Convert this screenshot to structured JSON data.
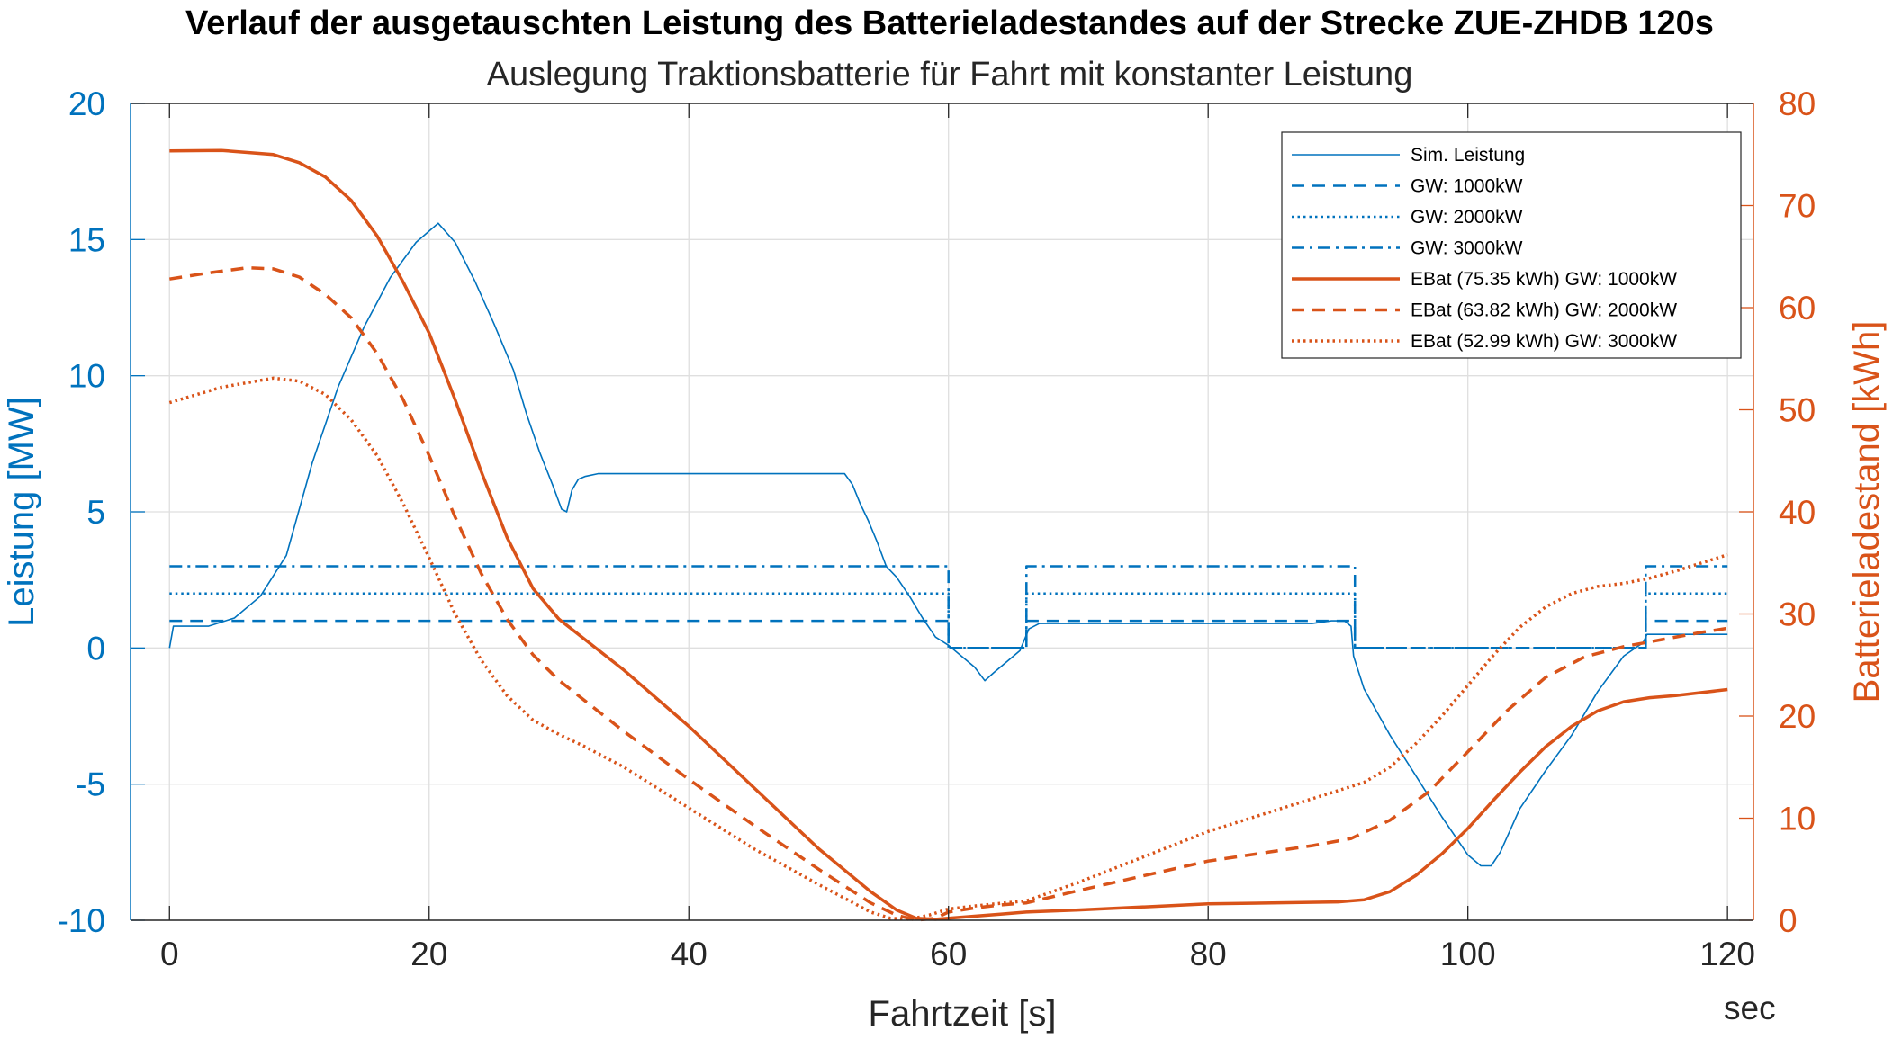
{
  "chart_data": {
    "type": "line",
    "title": "Verlauf der ausgetauschten Leistung des Batterieladestandes auf der Strecke ZUE-ZHDB 120s",
    "subtitle": "Auslegung Traktionsbatterie für Fahrt mit konstanter Leistung",
    "xlabel": "Fahrtzeit [s]",
    "xunit_label": "sec",
    "ylabel_left": "Leistung [MW]",
    "ylabel_right": "Batterieladestand [kWh]",
    "xlim": [
      -3,
      122
    ],
    "ylim_left": [
      -10,
      20
    ],
    "ylim_right": [
      0,
      80
    ],
    "xticks": [
      "0",
      "20",
      "40",
      "60",
      "80",
      "100",
      "120"
    ],
    "yticks_left": [
      "-10",
      "-5",
      "0",
      "5",
      "10",
      "15",
      "20"
    ],
    "yticks_right": [
      "0",
      "10",
      "20",
      "30",
      "40",
      "50",
      "60",
      "70",
      "80"
    ],
    "grid": true,
    "legend_position": "top-right",
    "colors": {
      "left_axis": "#0072BD",
      "right_axis": "#D95319",
      "grid": "#dfdfdf"
    },
    "series": [
      {
        "name": "Sim. Leistung",
        "axis": "left",
        "color": "#0072BD",
        "style": "solid",
        "width": 1.6,
        "x": [
          0,
          0.3,
          3,
          5,
          7,
          9,
          11,
          13,
          15,
          17,
          19,
          20.7,
          22,
          23.5,
          25,
          26.5,
          27.5,
          28.5,
          29.5,
          30.2,
          30.6,
          31,
          31.5,
          32,
          33,
          52,
          52.6,
          53.2,
          53.8,
          54.5,
          55.2,
          56,
          57,
          58,
          59,
          60,
          61,
          62,
          62.8,
          63.5,
          64.5,
          65.5,
          66.2,
          67,
          68,
          88,
          89.5,
          90.5,
          91,
          91.2,
          92,
          94,
          96,
          98,
          100,
          101,
          101.8,
          102.5,
          104,
          106,
          108,
          110,
          112,
          113.5,
          113.8,
          120
        ],
        "y": [
          0,
          0.8,
          0.8,
          1.1,
          1.9,
          3.4,
          6.8,
          9.6,
          11.8,
          13.6,
          14.9,
          15.6,
          14.9,
          13.5,
          11.9,
          10.2,
          8.6,
          7.2,
          6.0,
          5.1,
          5.0,
          5.8,
          6.2,
          6.3,
          6.4,
          6.4,
          6.0,
          5.3,
          4.7,
          3.9,
          3.0,
          2.6,
          1.9,
          1.1,
          0.4,
          0.1,
          -0.3,
          -0.7,
          -1.2,
          -0.9,
          -0.5,
          -0.1,
          0.7,
          0.9,
          0.9,
          0.9,
          1.0,
          1.0,
          0.8,
          -0.3,
          -1.5,
          -3.2,
          -4.7,
          -6.2,
          -7.6,
          -8.0,
          -8.0,
          -7.5,
          -5.9,
          -4.5,
          -3.2,
          -1.6,
          -0.3,
          0.2,
          0.5,
          0.5
        ]
      },
      {
        "name": "GW: 1000kW",
        "axis": "left",
        "color": "#0072BD",
        "style": "dashed",
        "width": 2.5,
        "x": [
          0,
          60,
          60,
          66,
          66,
          91.3,
          91.3,
          113.7,
          113.7,
          120
        ],
        "y": [
          1,
          1,
          0,
          0,
          1,
          1,
          0,
          0,
          1,
          1
        ]
      },
      {
        "name": "GW: 2000kW",
        "axis": "left",
        "color": "#0072BD",
        "style": "dotted",
        "width": 2.5,
        "x": [
          0,
          60,
          60,
          66,
          66,
          91.3,
          91.3,
          113.7,
          113.7,
          120
        ],
        "y": [
          2,
          2,
          0,
          0,
          2,
          2,
          0,
          0,
          2,
          2
        ]
      },
      {
        "name": "GW: 3000kW",
        "axis": "left",
        "color": "#0072BD",
        "style": "dashdot",
        "width": 2.5,
        "x": [
          0,
          60,
          60,
          66,
          66,
          91.3,
          91.3,
          113.7,
          113.7,
          120
        ],
        "y": [
          3,
          3,
          0,
          0,
          3,
          3,
          0,
          0,
          3,
          3
        ]
      },
      {
        "name": "EBat (75.35 kWh) GW: 1000kW",
        "axis": "right",
        "color": "#D95319",
        "style": "solid",
        "width": 3.5,
        "x": [
          0,
          4,
          8,
          10,
          12,
          14,
          16,
          18,
          20,
          22,
          24,
          26,
          28,
          30,
          32,
          35,
          40,
          45,
          50,
          54,
          56,
          57.5,
          59,
          60,
          62,
          64,
          66,
          70,
          80,
          90,
          92,
          94,
          96,
          98,
          100,
          102,
          104,
          106,
          108,
          110,
          112,
          114,
          116,
          118,
          120
        ],
        "y": [
          75.35,
          75.4,
          75.0,
          74.2,
          72.8,
          70.5,
          67.0,
          62.5,
          57.5,
          51.0,
          44.0,
          37.5,
          32.5,
          29.5,
          27.5,
          24.5,
          19.0,
          13.0,
          7.0,
          2.8,
          1.0,
          0.2,
          0.1,
          0.2,
          0.4,
          0.6,
          0.8,
          1.0,
          1.6,
          1.8,
          2.0,
          2.8,
          4.4,
          6.5,
          9.0,
          11.8,
          14.5,
          17.0,
          19.0,
          20.5,
          21.4,
          21.8,
          22.0,
          22.3,
          22.6
        ]
      },
      {
        "name": "EBat (63.82 kWh) GW: 2000kW",
        "axis": "right",
        "color": "#D95319",
        "style": "dashed",
        "width": 3.5,
        "x": [
          0,
          3,
          6,
          8,
          10,
          12,
          14,
          16,
          18,
          20,
          22,
          24,
          26,
          28,
          30,
          32,
          35,
          40,
          45,
          50,
          54,
          56,
          57.5,
          59,
          60,
          62,
          64,
          66,
          70,
          80,
          88,
          91,
          94,
          97,
          100,
          103,
          106,
          109,
          112,
          115,
          118,
          120
        ],
        "y": [
          62.8,
          63.4,
          63.9,
          63.8,
          63.0,
          61.3,
          59.0,
          55.5,
          51.0,
          45.5,
          39.5,
          34.0,
          29.5,
          26.0,
          23.5,
          21.5,
          18.5,
          13.8,
          9.3,
          5.0,
          1.7,
          0.5,
          0.0,
          0.2,
          0.8,
          1.2,
          1.5,
          1.7,
          2.9,
          5.8,
          7.3,
          8.0,
          9.8,
          12.6,
          16.5,
          20.5,
          23.8,
          25.8,
          26.8,
          27.5,
          28.2,
          28.6
        ]
      },
      {
        "name": "EBat (52.99 kWh) GW: 3000kW",
        "axis": "right",
        "color": "#D95319",
        "style": "dotted",
        "width": 3.5,
        "x": [
          0,
          4,
          8,
          10,
          12,
          14,
          16,
          18,
          20,
          22,
          24,
          26,
          28,
          30,
          32,
          35,
          40,
          45,
          50,
          54,
          55.5,
          57,
          58.5,
          60,
          62,
          66,
          70,
          80,
          90,
          92,
          94,
          96,
          98,
          100,
          102,
          104,
          106,
          108,
          110,
          112,
          114,
          116,
          118,
          120
        ],
        "y": [
          50.7,
          52.2,
          53.1,
          52.8,
          51.5,
          49.0,
          45.5,
          40.8,
          35.5,
          30.0,
          25.5,
          22.0,
          19.6,
          18.2,
          17.0,
          15.0,
          11.0,
          7.0,
          3.5,
          0.8,
          0.2,
          0.1,
          0.5,
          1.1,
          1.4,
          1.9,
          3.7,
          8.7,
          12.7,
          13.5,
          15.0,
          17.3,
          20.0,
          23.0,
          26.0,
          28.7,
          30.7,
          32.0,
          32.7,
          33.0,
          33.5,
          34.2,
          35.0,
          35.8
        ]
      }
    ]
  }
}
